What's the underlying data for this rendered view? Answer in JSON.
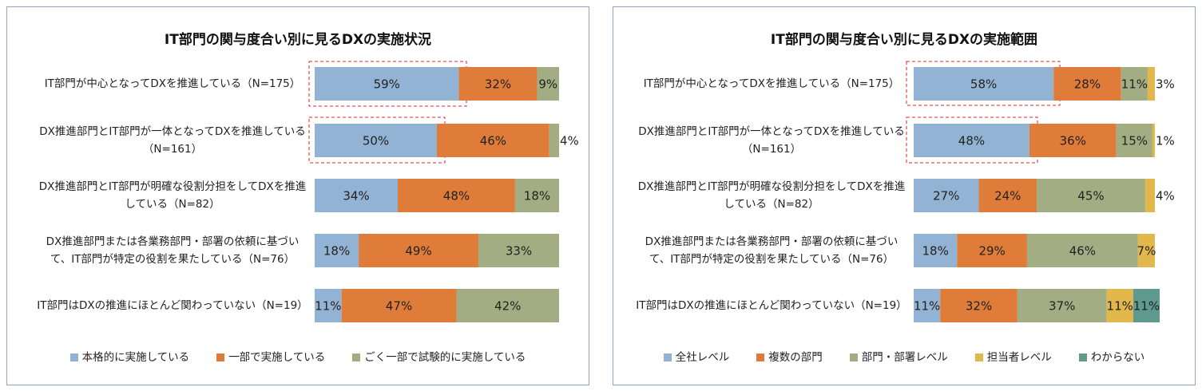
{
  "chart_data": [
    {
      "type": "bar",
      "orientation": "horizontal",
      "stacked": true,
      "title": "IT部門の関与度合い別に見るDXの実施状況",
      "categories": [
        "IT部門が中心となってDXを推進している（N=175）",
        "DX推進部門とIT部門が一体となってDXを推進している（N=161）",
        "DX推進部門とIT部門が明確な役割分担をしてDXを推進している（N=82）",
        "DX推進部門または各業務部門・部署の依頼に基づいて、IT部門が特定の役割を果たしている（N=76）",
        "IT部門はDXの推進にほとんど関わっていない（N=19）"
      ],
      "xlim": [
        0,
        100
      ],
      "series": [
        {
          "name": "本格的に実施している",
          "color": "#93b3d4",
          "values": [
            59,
            50,
            34,
            18,
            11
          ],
          "value_labels": [
            "59%",
            "50%",
            "34%",
            "18%",
            "11%"
          ]
        },
        {
          "name": "一部で実施している",
          "color": "#e07c3a",
          "values": [
            32,
            46,
            48,
            49,
            47
          ],
          "value_labels": [
            "32%",
            "46%",
            "48%",
            "49%",
            "47%"
          ]
        },
        {
          "name": "ごく一部で試験的に実施している",
          "color": "#a3ad83",
          "values": [
            9,
            4,
            18,
            33,
            42
          ],
          "value_labels": [
            "9%",
            "4%",
            "18%",
            "33%",
            "42%"
          ]
        }
      ]
    },
    {
      "type": "bar",
      "orientation": "horizontal",
      "stacked": true,
      "title": "IT部門の関与度合い別に見るDXの実施範囲",
      "categories": [
        "IT部門が中心となってDXを推進している（N=175）",
        "DX推進部門とIT部門が一体となってDXを推進している（N=161）",
        "DX推進部門とIT部門が明確な役割分担をしてDXを推進している（N=82）",
        "DX推進部門または各業務部門・部署の依頼に基づいて、IT部門が特定の役割を果たしている（N=76）",
        "IT部門はDXの推進にほとんど関わっていない（N=19）"
      ],
      "xlim": [
        0,
        100
      ],
      "series": [
        {
          "name": "全社レベル",
          "color": "#93b3d4",
          "values": [
            58,
            48,
            27,
            18,
            11
          ],
          "value_labels": [
            "58%",
            "48%",
            "27%",
            "18%",
            "11%"
          ]
        },
        {
          "name": "複数の部門",
          "color": "#e07c3a",
          "values": [
            28,
            36,
            24,
            29,
            32
          ],
          "value_labels": [
            "28%",
            "36%",
            "24%",
            "29%",
            "32%"
          ]
        },
        {
          "name": "部門・部署レベル",
          "color": "#a3ad83",
          "values": [
            11,
            15,
            45,
            46,
            37
          ],
          "value_labels": [
            "11%",
            "15%",
            "45%",
            "46%",
            "37%"
          ]
        },
        {
          "name": "担当者レベル",
          "color": "#e2b84c",
          "values": [
            3,
            1,
            4,
            7,
            11
          ],
          "value_labels": [
            "3%",
            "1%",
            "4%",
            "7%",
            "11%"
          ]
        },
        {
          "name": "わからない",
          "color": "#5e9a8e",
          "values": [
            null,
            null,
            null,
            null,
            11
          ],
          "value_labels": [
            null,
            null,
            null,
            null,
            "11%"
          ]
        }
      ]
    }
  ]
}
